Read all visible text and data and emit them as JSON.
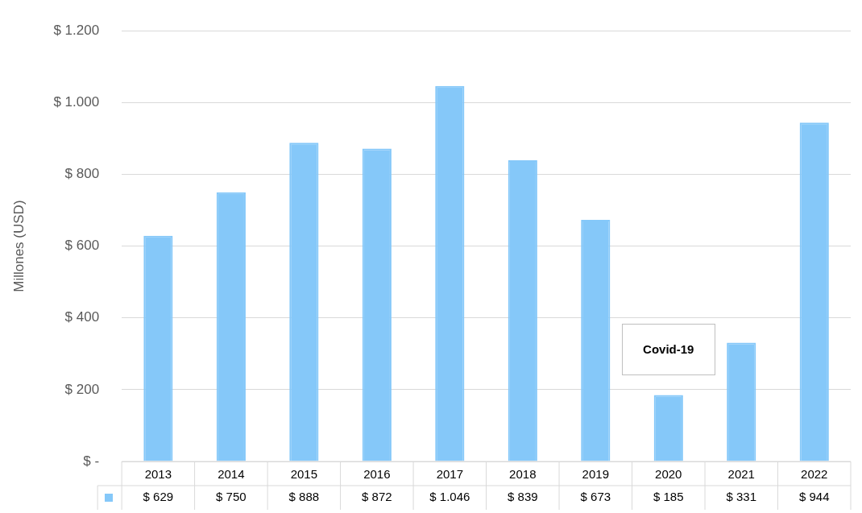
{
  "chart_data": {
    "type": "bar",
    "ylabel": "Millones (USD)",
    "categories": [
      "2013",
      "2014",
      "2015",
      "2016",
      "2017",
      "2018",
      "2019",
      "2020",
      "2021",
      "2022"
    ],
    "values": [
      629,
      750,
      888,
      872,
      1046,
      839,
      673,
      185,
      331,
      944
    ],
    "value_labels": [
      "$ 629",
      "$ 750",
      "$ 888",
      "$ 872",
      "$ 1.046",
      "$ 839",
      "$ 673",
      "$ 185",
      "$ 331",
      "$ 944"
    ],
    "color": "#85c8f9",
    "ylim": [
      0,
      1200
    ],
    "yticks": [
      {
        "value": 0,
        "label": "$ -"
      },
      {
        "value": 200,
        "label": "$ 200"
      },
      {
        "value": 400,
        "label": "$ 400"
      },
      {
        "value": 600,
        "label": "$ 600"
      },
      {
        "value": 800,
        "label": "$ 800"
      },
      {
        "value": 1000,
        "label": "$ 1.000"
      },
      {
        "value": 1200,
        "label": "$ 1.200"
      }
    ],
    "grid": "y",
    "annotations": [
      "Covid-19"
    ]
  }
}
